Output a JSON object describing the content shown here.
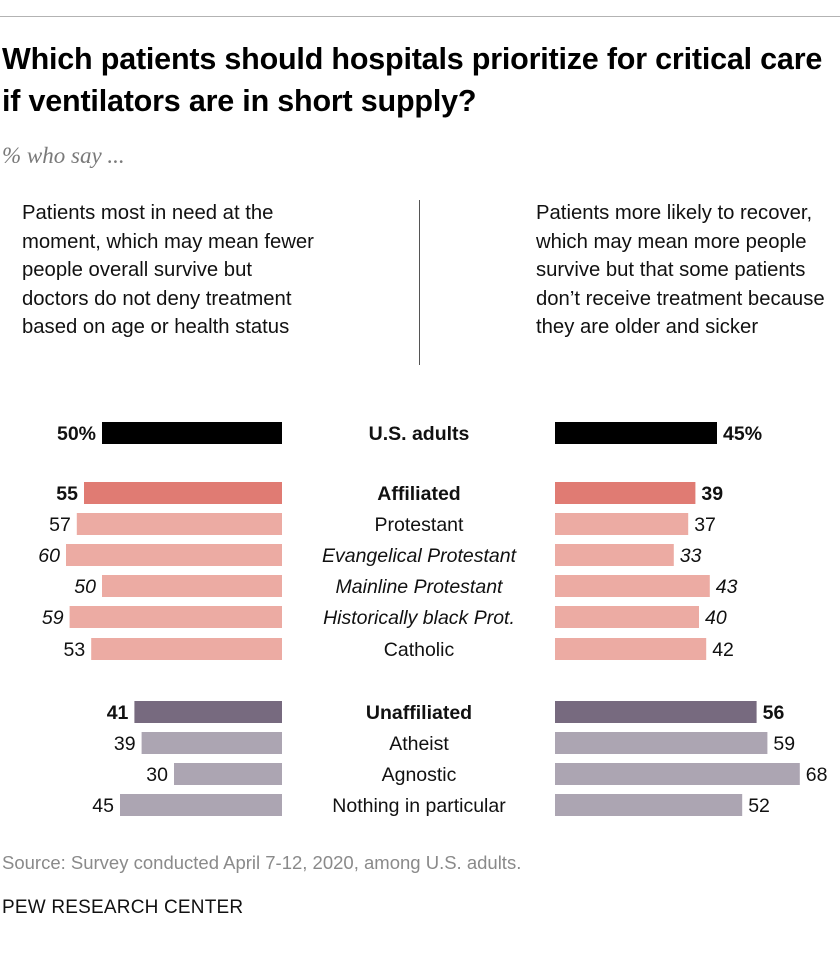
{
  "title": "Which patients should hospitals prioritize for critical care if ventilators are in short supply?",
  "subtitle": "% who say ...",
  "left_description": "Patients most in need at the moment, which may mean fewer people overall survive but doctors do not deny treatment based on age or health status",
  "right_description": "Patients more likely to recover, which may mean more people survive but that some patients don’t receive treatment because they are older and sicker",
  "source": "Source: Survey conducted April 7-12, 2020, among U.S. adults.",
  "brand": "PEW RESEARCH CENTER",
  "colors": {
    "total": "#000000",
    "affiliated_bold": "#e07b73",
    "affiliated_light": "#ecaba3",
    "unaffiliated_bold": "#776a7f",
    "unaffiliated_light": "#aca5b2"
  },
  "chart_data": {
    "type": "bar",
    "subtype": "diverging-horizontal",
    "title": "Which patients should hospitals prioritize for critical care if ventilators are in short supply?",
    "series": [
      {
        "name": "Patients most in need at the moment",
        "side": "left"
      },
      {
        "name": "Patients more likely to recover",
        "side": "right"
      }
    ],
    "rows": [
      {
        "label": "U.S. adults",
        "left": 50,
        "right": 45,
        "left_text": "50%",
        "right_text": "45%",
        "style": "total",
        "bold": true,
        "italic": false
      },
      {
        "label": "Affiliated",
        "left": 55,
        "right": 39,
        "left_text": "55",
        "right_text": "39",
        "style": "affiliated_bold",
        "bold": true,
        "italic": false
      },
      {
        "label": "Protestant",
        "left": 57,
        "right": 37,
        "left_text": "57",
        "right_text": "37",
        "style": "affiliated_light",
        "bold": false,
        "italic": false
      },
      {
        "label": "Evangelical Protestant",
        "left": 60,
        "right": 33,
        "left_text": "60",
        "right_text": "33",
        "style": "affiliated_light",
        "bold": false,
        "italic": true
      },
      {
        "label": "Mainline Protestant",
        "left": 50,
        "right": 43,
        "left_text": "50",
        "right_text": "43",
        "style": "affiliated_light",
        "bold": false,
        "italic": true
      },
      {
        "label": "Historically black Prot.",
        "left": 59,
        "right": 40,
        "left_text": "59",
        "right_text": "40",
        "style": "affiliated_light",
        "bold": false,
        "italic": true
      },
      {
        "label": "Catholic",
        "left": 53,
        "right": 42,
        "left_text": "53",
        "right_text": "42",
        "style": "affiliated_light",
        "bold": false,
        "italic": false
      },
      {
        "label": "Unaffiliated",
        "left": 41,
        "right": 56,
        "left_text": "41",
        "right_text": "56",
        "style": "unaffiliated_bold",
        "bold": true,
        "italic": false
      },
      {
        "label": "Atheist",
        "left": 39,
        "right": 59,
        "left_text": "39",
        "right_text": "59",
        "style": "unaffiliated_light",
        "bold": false,
        "italic": false
      },
      {
        "label": "Agnostic",
        "left": 30,
        "right": 68,
        "left_text": "30",
        "right_text": "68",
        "style": "unaffiliated_light",
        "bold": false,
        "italic": false
      },
      {
        "label": "Nothing in particular",
        "left": 45,
        "right": 52,
        "left_text": "45",
        "right_text": "52",
        "style": "unaffiliated_light",
        "bold": false,
        "italic": false
      }
    ]
  }
}
